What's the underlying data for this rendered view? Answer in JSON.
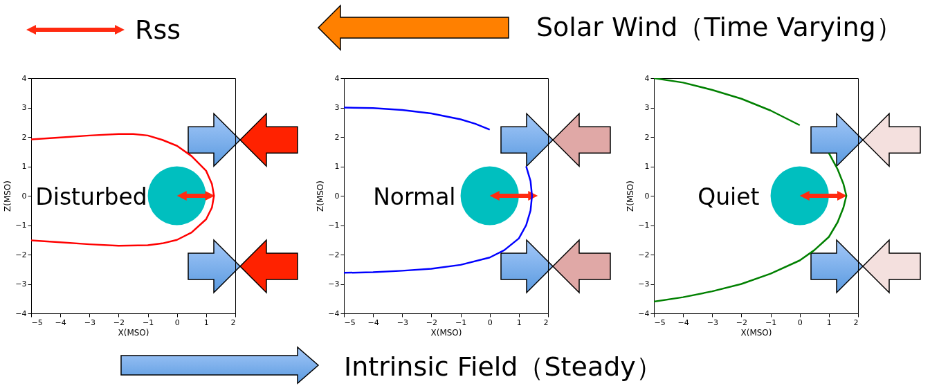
{
  "chart_data": [
    {
      "type": "line",
      "xlabel": "X(MSO)",
      "ylabel": "Z(MSO)",
      "xlim": [
        -5,
        2
      ],
      "ylim": [
        -4,
        4
      ],
      "xticks": [
        -5,
        -4,
        -3,
        -2,
        -1,
        0,
        1,
        2
      ],
      "yticks": [
        -4,
        -3,
        -2,
        -1,
        0,
        1,
        2,
        3,
        4
      ],
      "annotations": [
        "Disturbed"
      ],
      "series": [
        {
          "color": "#ff0000",
          "x": [
            -5,
            -4,
            -3,
            -2,
            -1.5,
            -1,
            -0.5,
            0,
            0.5,
            1,
            1.2,
            1.27,
            1.2,
            1,
            0.5,
            0,
            -0.5,
            -1,
            -2,
            -3,
            -4,
            -5
          ],
          "values": [
            1.92,
            1.98,
            2.05,
            2.1,
            2.1,
            2.05,
            1.9,
            1.7,
            1.35,
            0.85,
            0.4,
            0,
            -0.4,
            -0.8,
            -1.25,
            -1.5,
            -1.62,
            -1.68,
            -1.7,
            -1.65,
            -1.58,
            -1.52
          ]
        }
      ]
    },
    {
      "type": "line",
      "xlabel": "X(MSO)",
      "ylabel": "Z(MSO)",
      "xlim": [
        -5,
        2
      ],
      "ylim": [
        -4,
        4
      ],
      "xticks": [
        -5,
        -4,
        -3,
        -2,
        -1,
        0,
        1,
        2
      ],
      "yticks": [
        -4,
        -3,
        -2,
        -1,
        0,
        1,
        2,
        3,
        4
      ],
      "annotations": [
        "Normal"
      ],
      "series": [
        {
          "color": "#0000ff",
          "x": [
            -5,
            -4,
            -3,
            -2,
            -1,
            -0.5,
            0,
            0.5,
            1,
            1.25,
            1.4,
            1.45,
            1.4,
            1.25,
            1,
            0.5,
            0,
            -1,
            -2,
            -3,
            -4,
            -5
          ],
          "values": [
            3,
            2.98,
            2.92,
            2.8,
            2.6,
            2.45,
            2.25,
            null,
            null,
            1,
            0.5,
            0,
            -0.5,
            -1,
            -1.45,
            -1.85,
            -2.1,
            -2.35,
            -2.48,
            -2.55,
            -2.6,
            -2.62
          ]
        }
      ]
    },
    {
      "type": "line",
      "xlabel": "X(MSO)",
      "ylabel": "Z(MSO)",
      "xlim": [
        -5,
        2
      ],
      "ylim": [
        -4,
        4
      ],
      "xticks": [
        -5,
        -4,
        -3,
        -2,
        -1,
        0,
        1,
        2
      ],
      "yticks": [
        -4,
        -3,
        -2,
        -1,
        0,
        1,
        2,
        3,
        4
      ],
      "annotations": [
        "Quiet"
      ],
      "series": [
        {
          "color": "#008000",
          "x": [
            -5,
            -4,
            -3,
            -2,
            -1,
            0,
            0.5,
            1,
            1.3,
            1.5,
            1.6,
            1.5,
            1.3,
            1,
            0.5,
            0,
            -1,
            -2,
            -3,
            -4,
            -5
          ],
          "values": [
            4,
            3.85,
            3.6,
            3.3,
            2.9,
            2.4,
            null,
            1.45,
            0.9,
            0.4,
            0,
            -0.4,
            -0.9,
            -1.4,
            -1.85,
            -2.2,
            -2.65,
            -3,
            -3.25,
            -3.45,
            -3.6
          ]
        }
      ]
    },
    {
      "type": "other",
      "annotations": [
        "Rss",
        "Solar Wind（Time Varying）",
        "Intrinsic Field（Steady）"
      ]
    }
  ]
}
